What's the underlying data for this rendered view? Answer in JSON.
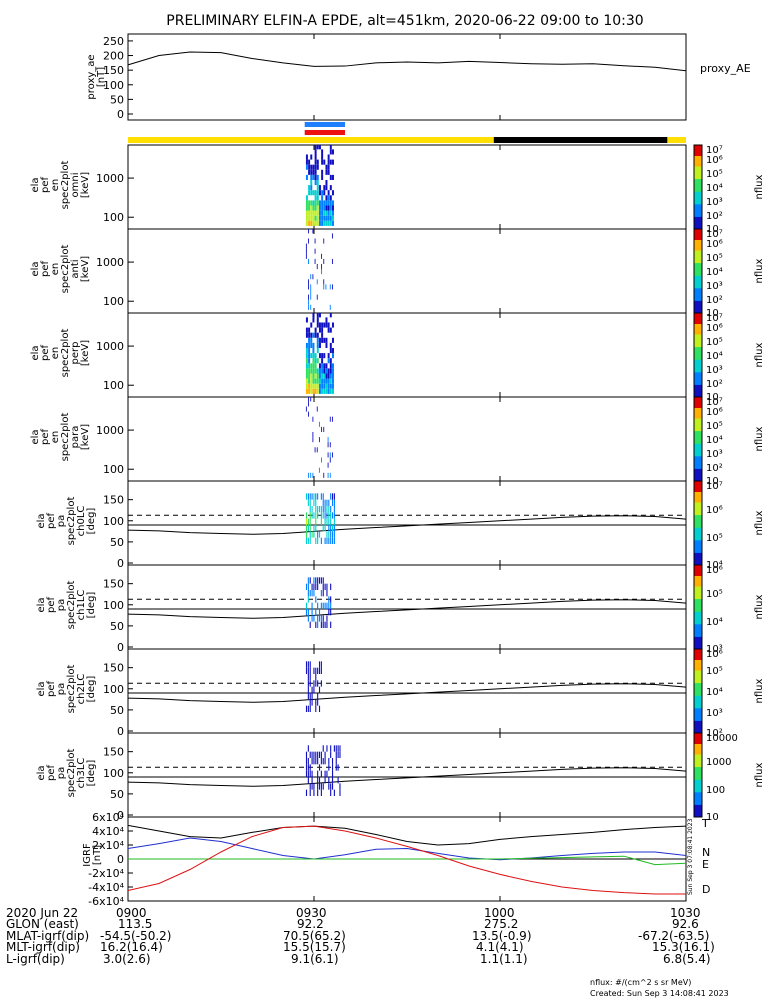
{
  "title": "PRELIMINARY ELFIN-A EPDE, alt=451km, 2020-06-22 09:00 to 10:30",
  "chart_data": [
    {
      "type": "line",
      "panel": "proxy_ae",
      "ylabel": "proxy_ae\n[nT]",
      "right_label": "proxy_AE",
      "ylim": [
        0,
        260
      ],
      "yticks": [
        "0",
        "50",
        "100",
        "150",
        "200",
        "250"
      ],
      "x_minutes": [
        0,
        5,
        10,
        15,
        20,
        25,
        30,
        35,
        40,
        45,
        50,
        55,
        60,
        65,
        70,
        75,
        80,
        85,
        90
      ],
      "values": [
        168,
        200,
        212,
        210,
        190,
        175,
        163,
        164,
        175,
        178,
        175,
        180,
        176,
        172,
        170,
        172,
        165,
        160,
        148
      ]
    },
    {
      "type": "bar",
      "panel": "status-bars",
      "segments": [
        {
          "start": 0,
          "end": 59,
          "color": "#ffe000"
        },
        {
          "start": 59,
          "end": 87,
          "color": "#000000"
        },
        {
          "start": 87,
          "end": 90,
          "color": "#ffe000"
        }
      ],
      "science_zone": {
        "start": 28.5,
        "end": 35,
        "colors": [
          "#1e7fff",
          "#ee1111"
        ]
      }
    },
    {
      "type": "heatmap",
      "panel": "en_omni",
      "ylabel": "ela\npef\nen\nspec2plot\nomni\n[keV]",
      "yticks": [
        "100",
        "1000"
      ],
      "colorbar_label": "nflux",
      "colorbar_ticks": [
        "10",
        "10²",
        "10³",
        "10⁴",
        "10⁵",
        "10⁶",
        "10⁷"
      ]
    },
    {
      "type": "heatmap",
      "panel": "en_anti",
      "ylabel": "ela\npef\nen\nspec2plot\nanti\n[keV]",
      "yticks": [
        "100",
        "1000"
      ],
      "colorbar_label": "nflux",
      "colorbar_ticks": [
        "10",
        "10²",
        "10³",
        "10⁴",
        "10⁵",
        "10⁶",
        "10⁷"
      ]
    },
    {
      "type": "heatmap",
      "panel": "en_perp",
      "ylabel": "ela\npef\nen\nspec2plot\nperp\n[keV]",
      "yticks": [
        "100",
        "1000"
      ],
      "colorbar_label": "nflux",
      "colorbar_ticks": [
        "10",
        "10²",
        "10³",
        "10⁴",
        "10⁵",
        "10⁶",
        "10⁷"
      ]
    },
    {
      "type": "heatmap",
      "panel": "en_para",
      "ylabel": "ela\npef\nen\nspec2plot\npara\n[keV]",
      "yticks": [
        "100",
        "1000"
      ],
      "colorbar_label": "nflux",
      "colorbar_ticks": [
        "10",
        "10²",
        "10³",
        "10⁴",
        "10⁵",
        "10⁶",
        "10⁷"
      ]
    },
    {
      "type": "heatmap",
      "panel": "pa_ch0",
      "ylabel": "ela\npef\npa\nspec2plot\nch0LC\n[deg]",
      "yticks": [
        "0",
        "50",
        "100",
        "150"
      ],
      "ylim": [
        0,
        180
      ],
      "colorbar_label": "nflux",
      "colorbar_ticks": [
        "10⁴",
        "10⁵",
        "10⁶",
        "10⁷"
      ]
    },
    {
      "type": "heatmap",
      "panel": "pa_ch1",
      "ylabel": "ela\npef\npa\nspec2plot\nch1LC\n[deg]",
      "yticks": [
        "0",
        "50",
        "100",
        "150"
      ],
      "ylim": [
        0,
        180
      ],
      "colorbar_label": "nflux",
      "colorbar_ticks": [
        "10³",
        "10⁴",
        "10⁵",
        "10⁶"
      ]
    },
    {
      "type": "heatmap",
      "panel": "pa_ch2",
      "ylabel": "ela\npef\npa\nspec2plot\nch2LC\n[deg]",
      "yticks": [
        "0",
        "50",
        "100",
        "150"
      ],
      "ylim": [
        0,
        180
      ],
      "colorbar_label": "nflux",
      "colorbar_ticks": [
        "10²",
        "10³",
        "10⁴",
        "10⁵",
        "10⁶"
      ]
    },
    {
      "type": "heatmap",
      "panel": "pa_ch3",
      "ylabel": "ela\npef\npa\nspec2plot\nch3LC\n[deg]",
      "yticks": [
        "0",
        "50",
        "100",
        "150"
      ],
      "ylim": [
        0,
        180
      ],
      "colorbar_label": "nflux",
      "colorbar_ticks": [
        "10",
        "100",
        "1000",
        "10000"
      ]
    },
    {
      "type": "line",
      "panel": "igrf",
      "ylabel": "IGRF\n[nT]",
      "ylim": [
        -60000,
        60000
      ],
      "yticks": [
        "-6x10⁴",
        "-4x10⁴",
        "-2x10⁴",
        "0",
        "2x10⁴",
        "4x10⁴",
        "6x10⁴"
      ],
      "x_minutes": [
        0,
        5,
        10,
        15,
        20,
        25,
        30,
        35,
        40,
        45,
        50,
        55,
        60,
        65,
        70,
        75,
        80,
        85,
        90
      ],
      "series": [
        {
          "name": "T",
          "color": "#000000",
          "values": [
            48000,
            40000,
            32000,
            30000,
            38000,
            45000,
            47000,
            44000,
            35000,
            25000,
            20000,
            22000,
            28000,
            32000,
            35000,
            38000,
            42000,
            45000,
            47000
          ]
        },
        {
          "name": "N",
          "color": "#1f2fcf",
          "values": [
            15000,
            22000,
            30000,
            25000,
            15000,
            5000,
            0,
            6000,
            14000,
            15000,
            8000,
            1500,
            -1000,
            1500,
            5000,
            8000,
            10000,
            10000,
            5000
          ]
        },
        {
          "name": "E",
          "color": "#22bb22",
          "values": [
            0,
            0,
            0,
            0,
            0,
            0,
            0,
            0,
            0,
            0,
            0,
            0,
            0,
            1000,
            2000,
            3000,
            4000,
            -8000,
            -6000
          ]
        },
        {
          "name": "D",
          "color": "#dd1111",
          "values": [
            -45000,
            -35000,
            -15000,
            10000,
            32000,
            45000,
            47000,
            40000,
            30000,
            18000,
            5000,
            -10000,
            -22000,
            -32000,
            -40000,
            -45000,
            -48000,
            -50000,
            -50000
          ]
        }
      ]
    }
  ],
  "x_axis": {
    "ticks": [
      "0900",
      "0930",
      "1000",
      "1030"
    ],
    "date": "2020 Jun 22",
    "rows": [
      {
        "label": "GLON (east)",
        "values": [
          "113.5",
          "92.2",
          "275.2",
          "92.6"
        ]
      },
      {
        "label": "MLAT-igrf(dip)",
        "values": [
          "-54.5(-50.2)",
          "70.5(65.2)",
          "13.5(-0.9)",
          "-67.2(-63.5)"
        ]
      },
      {
        "label": "MLT-igrf(dip)",
        "values": [
          "16.2(16.4)",
          "15.5(15.7)",
          "4.1(4.1)",
          "15.3(16.1)"
        ]
      },
      {
        "label": "L-igrf(dip)",
        "values": [
          "3.0(2.6)",
          "9.1(6.1)",
          "1.1(1.1)",
          "6.8(5.4)"
        ]
      }
    ]
  },
  "units_note": "nflux: #/(cm^2 s sr MeV)",
  "created": "Created: Sun Sep  3 14:08:41 2023",
  "side_stamp": "Sun Sep  3 07:08:41 2023"
}
